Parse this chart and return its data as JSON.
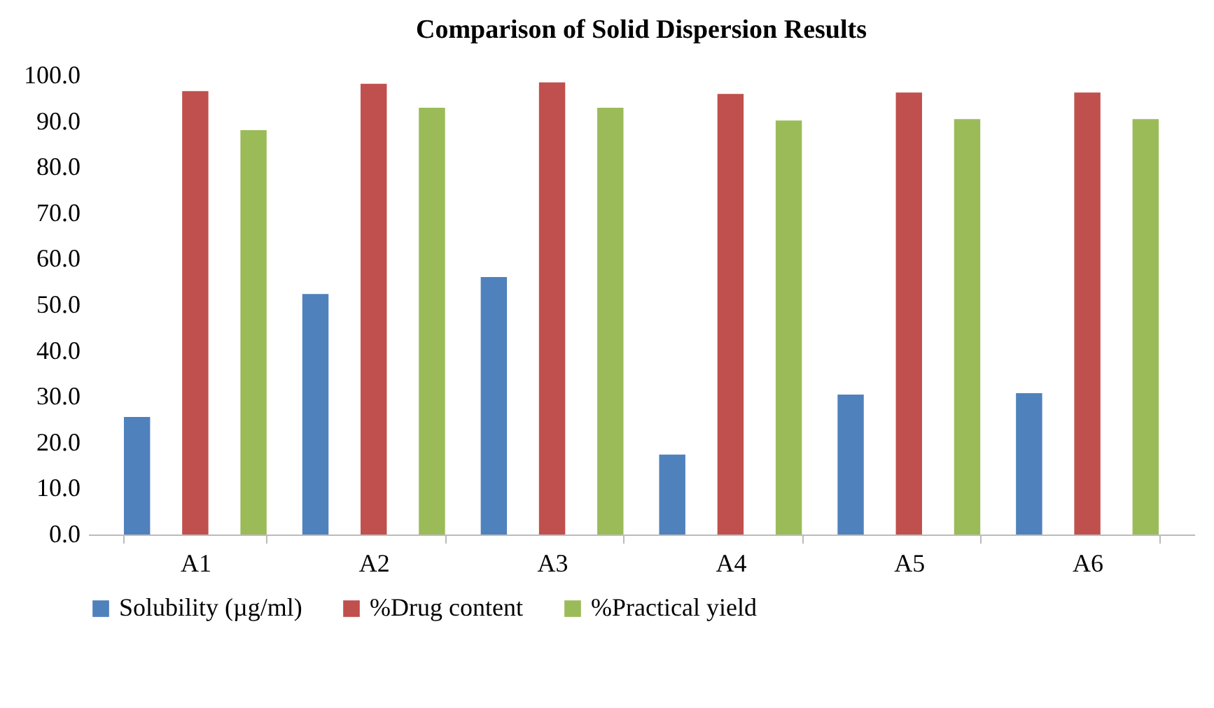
{
  "chart_data": {
    "type": "bar",
    "title": "Comparison of Solid Dispersion Results",
    "categories": [
      "A1",
      "A2",
      "A3",
      "A4",
      "A5",
      "A6"
    ],
    "series": [
      {
        "name": "Solubility (µg/ml)",
        "color": "#4f81bd",
        "values": [
          25.6,
          52.4,
          56.1,
          17.4,
          30.5,
          30.8
        ]
      },
      {
        "name": "%Drug content",
        "color": "#c0504d",
        "values": [
          96.6,
          98.2,
          98.5,
          96.0,
          96.3,
          96.3
        ]
      },
      {
        "name": "%Practical yield",
        "color": "#9bbb59",
        "values": [
          88.1,
          93.0,
          93.0,
          90.2,
          90.5,
          90.5
        ]
      }
    ],
    "ylim": [
      0,
      100
    ],
    "yticks": [
      {
        "value": 0,
        "label": "0.0"
      },
      {
        "value": 10,
        "label": "10.0"
      },
      {
        "value": 20,
        "label": "20.0"
      },
      {
        "value": 30,
        "label": "30.0"
      },
      {
        "value": 40,
        "label": "40.0"
      },
      {
        "value": 50,
        "label": "50.0"
      },
      {
        "value": 60,
        "label": "60.0"
      },
      {
        "value": 70,
        "label": "70.0"
      },
      {
        "value": 80,
        "label": "80.0"
      },
      {
        "value": 90,
        "label": "90.0"
      },
      {
        "value": 100,
        "label": "100.0"
      }
    ],
    "grid": false,
    "legend": "bottom"
  }
}
